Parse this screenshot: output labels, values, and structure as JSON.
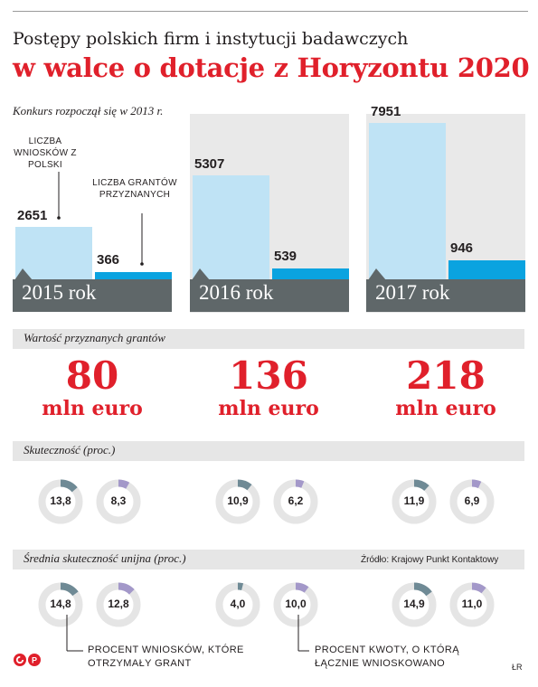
{
  "header": {
    "title_line1": "Postępy polskich firm i instytucji badawczych",
    "title_line2": "w walce o dotacje z Horyzontu 2020",
    "subtitle": "Konkurs rozpoczął się w 2013 r."
  },
  "annotations": {
    "applications_note": "LICZBA WNIOSKÓW Z POLSKI",
    "grants_note": "LICZBA GRANTÓW PRZYZNANYCH"
  },
  "sections": {
    "grant_value_label": "Wartość przyznanych grantów",
    "success_label": "Skuteczność (proc.)",
    "eu_avg_label": "Średnia skuteczność unijna (proc.)",
    "source": "Źródło: Krajowy Punkt Kontaktowy"
  },
  "legend": {
    "applications": "PROCENT WNIOSKÓW, KTÓRE OTRZYMAŁY GRANT",
    "amount": "PROCENT KWOTY, O KTÓRĄ ŁĄCZNIE WNIOSKOWANO"
  },
  "footer": {
    "logo": "cp",
    "credit": "ŁR"
  },
  "colors": {
    "applications_bar": "#bfe3f5",
    "grants_bar": "#0aa3e0",
    "year_strip": "#5f6769",
    "highlight_red": "#e0202b",
    "donut_track": "#e5e5e5",
    "donut_applications": "#6f8a95",
    "donut_amount": "#a398c9"
  },
  "chart_data": {
    "type": "bar",
    "categories": [
      "2015 rok",
      "2016 rok",
      "2017 rok"
    ],
    "series": [
      {
        "key": "applications",
        "values": [
          2651,
          5307,
          7951
        ]
      },
      {
        "key": "grants",
        "values": [
          366,
          539,
          946
        ]
      }
    ],
    "grant_value": {
      "numbers": [
        "80",
        "136",
        "218"
      ],
      "unit": "mln euro"
    },
    "success_rate": {
      "applications_pct": [
        13.8,
        10.9,
        11.9
      ],
      "amount_pct": [
        8.3,
        6.2,
        6.9
      ],
      "applications_labels": [
        "13,8",
        "10,9",
        "11,9"
      ],
      "amount_labels": [
        "8,3",
        "6,2",
        "6,9"
      ]
    },
    "eu_average": {
      "applications_pct": [
        14.8,
        4.0,
        14.9
      ],
      "amount_pct": [
        12.8,
        10.0,
        11.0
      ],
      "applications_labels": [
        "14,8",
        "4,0",
        "14,9"
      ],
      "amount_labels": [
        "12,8",
        "10,0",
        "11,0"
      ]
    }
  }
}
